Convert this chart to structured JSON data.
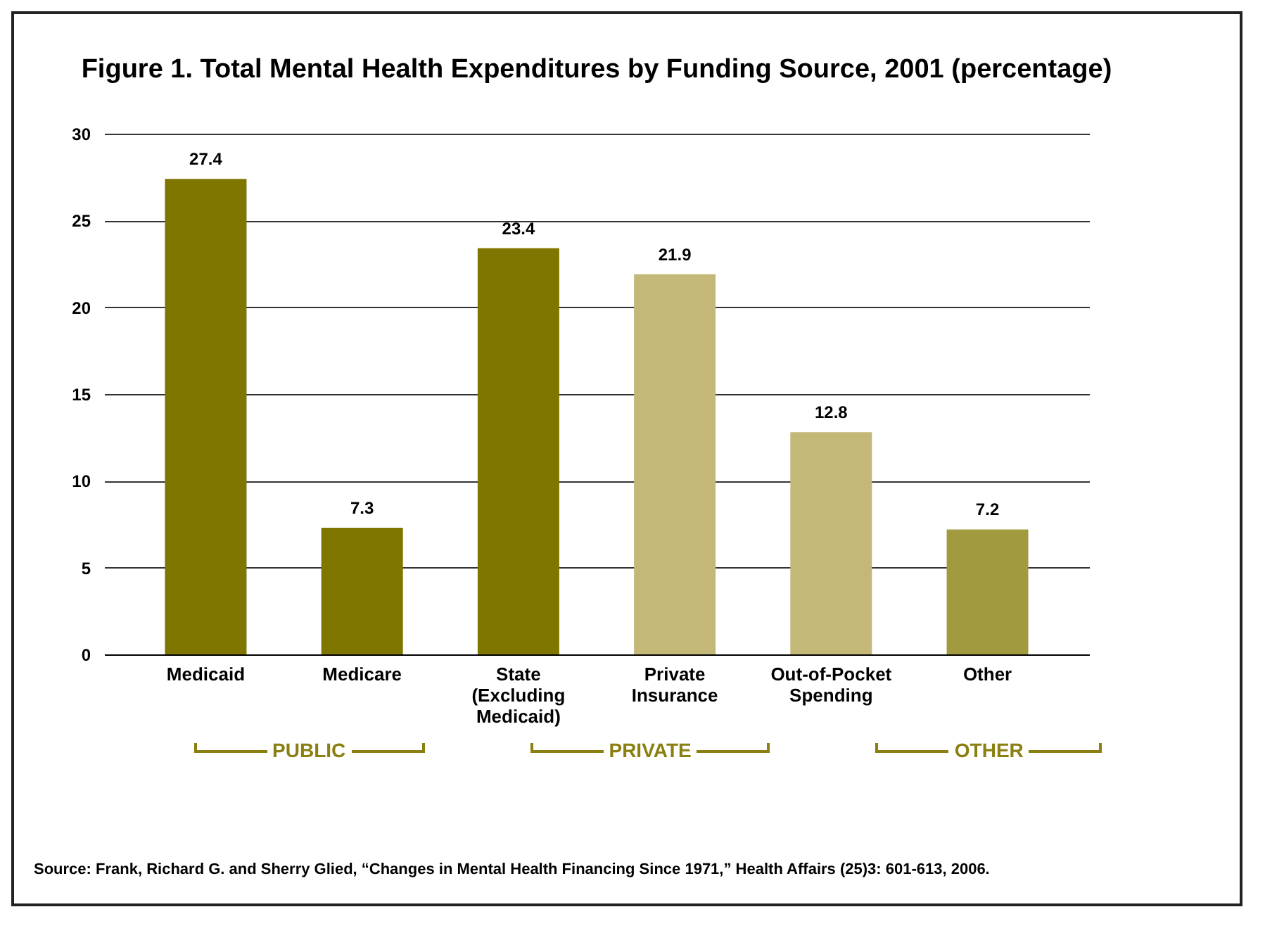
{
  "chart_data": {
    "type": "bar",
    "title": "Figure 1. Total Mental Health Expenditures by Funding Source, 2001 (percentage)",
    "categories": [
      "Medicaid",
      "Medicare",
      "State (Excluding Medicaid)",
      "Private Insurance",
      "Out-of-Pocket Spending",
      "Other"
    ],
    "values": [
      27.4,
      7.3,
      23.4,
      21.9,
      12.8,
      7.2
    ],
    "colors": [
      "#7f7600",
      "#7f7600",
      "#7f7600",
      "#c3b877",
      "#c3b877",
      "#a19a3e"
    ],
    "data_labels": true,
    "ylim": [
      0,
      30
    ],
    "yticks": [
      0,
      5,
      10,
      15,
      20,
      25,
      30
    ],
    "grid": "y",
    "annotations": [
      "PUBLIC",
      "PRIVATE",
      "OTHER",
      "Source: Frank, Richard G. and Sherry Glied, “Changes in Mental Health Financing Since 1971,” Health Affairs (25)3: 601-613, 2006."
    ]
  }
}
